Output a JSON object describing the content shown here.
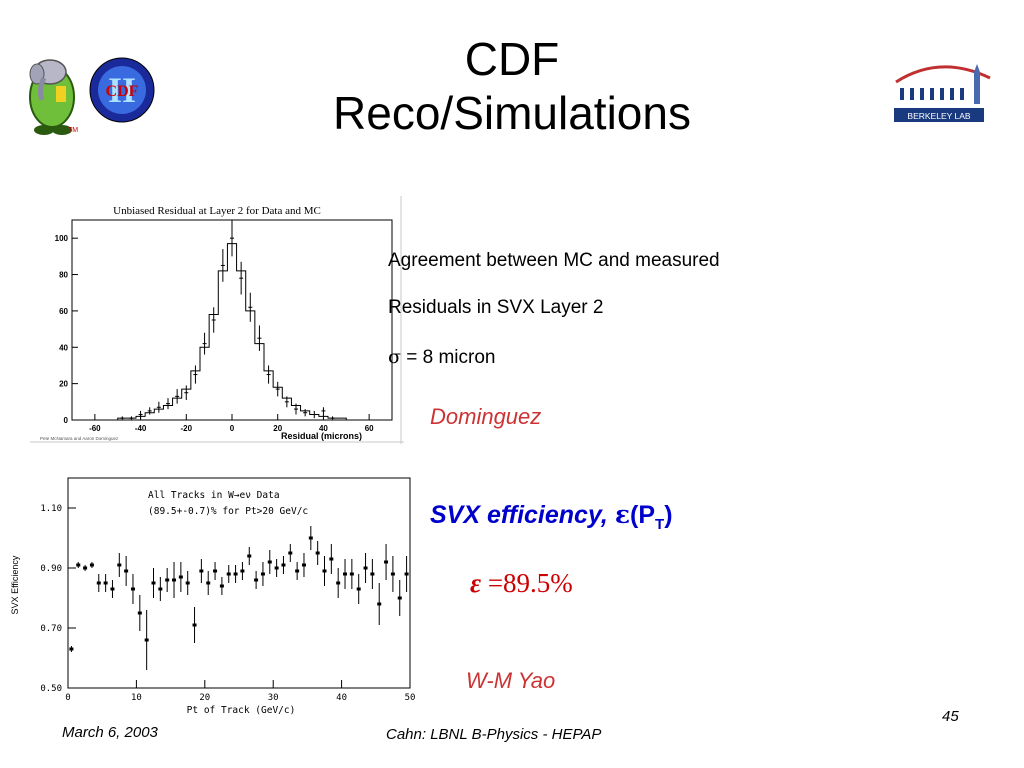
{
  "slide": {
    "title_line1": "CDF",
    "title_line2": "Reco/Simulations",
    "logo_left_text": "CDF",
    "logo_left_numeral": "II",
    "logo_left_tm": "TM",
    "logo_right_text": "BERKELEY LAB",
    "text_line1": "Agreement between MC and measured",
    "text_line2": "Residuals in SVX Layer 2",
    "text_line3_symbol": "σ",
    "text_line3_rest": " = 8 micron",
    "author1": "Dominguez",
    "eff_heading_main": "SVX  efficiency, ",
    "eff_heading_symbol": "ε",
    "eff_heading_paren_open": "(P",
    "eff_heading_sub": "T",
    "eff_heading_paren_close": ")",
    "eff_value_symbol": "ε",
    "eff_value_rest": " =89.5%",
    "author2": "W-M Yao",
    "footer_date": "March 6, 2003",
    "footer_center": "Cahn:  LBNL B-Physics - HEPAP",
    "page_number": "45",
    "colors": {
      "author": "#cc3333",
      "heading": "#0000cc",
      "value": "#cc0000"
    }
  },
  "chart_data": [
    {
      "type": "line",
      "title": "Unbiased Residual at Layer 2 for Data and MC",
      "xlabel": "Residual (microns)",
      "ylabel": "",
      "xlim": [
        -70,
        70
      ],
      "ylim": [
        0,
        110
      ],
      "xticks": [
        -60,
        -40,
        -20,
        0,
        20,
        40,
        60
      ],
      "yticks": [
        0,
        20,
        40,
        60,
        80,
        100
      ],
      "credit": "Pete McNamara and Aaron Dominguez",
      "grid": false,
      "series": [
        {
          "style": "histogram",
          "x": [
            -60,
            -56,
            -52,
            -48,
            -44,
            -40,
            -36,
            -32,
            -28,
            -24,
            -20,
            -16,
            -12,
            -8,
            -4,
            0,
            4,
            8,
            12,
            16,
            20,
            24,
            28,
            32,
            36,
            40,
            44,
            48,
            52,
            56,
            60
          ],
          "values": [
            0,
            0,
            0,
            1,
            1,
            2,
            4,
            6,
            8,
            12,
            17,
            27,
            40,
            58,
            82,
            97,
            82,
            60,
            42,
            27,
            18,
            12,
            8,
            5,
            3,
            2,
            1,
            1,
            0,
            0,
            0
          ]
        },
        {
          "style": "errorbar",
          "x": [
            -48,
            -44,
            -40,
            -36,
            -32,
            -28,
            -24,
            -20,
            -16,
            -12,
            -8,
            -4,
            0,
            4,
            8,
            12,
            16,
            20,
            24,
            28,
            32,
            36,
            40,
            44
          ],
          "values": [
            1,
            1,
            3,
            5,
            7,
            9,
            13,
            15,
            25,
            42,
            55,
            85,
            100,
            78,
            62,
            45,
            25,
            17,
            10,
            6,
            4,
            3,
            5,
            1
          ],
          "errors": [
            1,
            1,
            2,
            2,
            3,
            3,
            4,
            4,
            5,
            6,
            7,
            9,
            10,
            9,
            8,
            7,
            5,
            4,
            3,
            3,
            2,
            2,
            2,
            1
          ]
        }
      ]
    },
    {
      "type": "scatter",
      "title": "All Tracks in W→eν Data",
      "subtitle": "(89.5+-0.7)% for Pt>20 GeV/c",
      "xlabel": "Pt of Track (GeV/c)",
      "ylabel": "SVX Efficiency",
      "xlim": [
        0,
        50
      ],
      "ylim": [
        0.5,
        1.2
      ],
      "xticks": [
        0,
        10,
        20,
        30,
        40,
        50
      ],
      "yticks": [
        0.5,
        0.7,
        0.9,
        1.1
      ],
      "ytick_labels": [
        "0.50",
        "0.70",
        "0.90",
        "1.10"
      ],
      "grid": false,
      "x": [
        0.5,
        1.5,
        2.5,
        3.5,
        4.5,
        5.5,
        6.5,
        7.5,
        8.5,
        9.5,
        10.5,
        11.5,
        12.5,
        13.5,
        14.5,
        15.5,
        16.5,
        17.5,
        18.5,
        19.5,
        20.5,
        21.5,
        22.5,
        23.5,
        24.5,
        25.5,
        26.5,
        27.5,
        28.5,
        29.5,
        30.5,
        31.5,
        32.5,
        33.5,
        34.5,
        35.5,
        36.5,
        37.5,
        38.5,
        39.5,
        40.5,
        41.5,
        42.5,
        43.5,
        44.5,
        45.5,
        46.5,
        47.5,
        48.5,
        49.5
      ],
      "values": [
        0.63,
        0.91,
        0.9,
        0.91,
        0.85,
        0.85,
        0.83,
        0.91,
        0.89,
        0.83,
        0.75,
        0.66,
        0.85,
        0.83,
        0.86,
        0.86,
        0.87,
        0.85,
        0.71,
        0.89,
        0.85,
        0.89,
        0.84,
        0.88,
        0.88,
        0.89,
        0.94,
        0.86,
        0.88,
        0.92,
        0.9,
        0.91,
        0.95,
        0.89,
        0.91,
        1.0,
        0.95,
        0.89,
        0.93,
        0.85,
        0.88,
        0.88,
        0.83,
        0.9,
        0.88,
        0.78,
        0.92,
        0.88,
        0.8,
        0.88
      ],
      "errors": [
        0.01,
        0.01,
        0.01,
        0.01,
        0.03,
        0.03,
        0.03,
        0.04,
        0.05,
        0.05,
        0.06,
        0.1,
        0.05,
        0.04,
        0.04,
        0.06,
        0.05,
        0.04,
        0.06,
        0.04,
        0.04,
        0.03,
        0.03,
        0.03,
        0.03,
        0.03,
        0.03,
        0.03,
        0.04,
        0.04,
        0.03,
        0.03,
        0.03,
        0.03,
        0.04,
        0.04,
        0.04,
        0.05,
        0.05,
        0.05,
        0.05,
        0.05,
        0.05,
        0.05,
        0.05,
        0.07,
        0.06,
        0.06,
        0.06,
        0.06
      ]
    }
  ]
}
